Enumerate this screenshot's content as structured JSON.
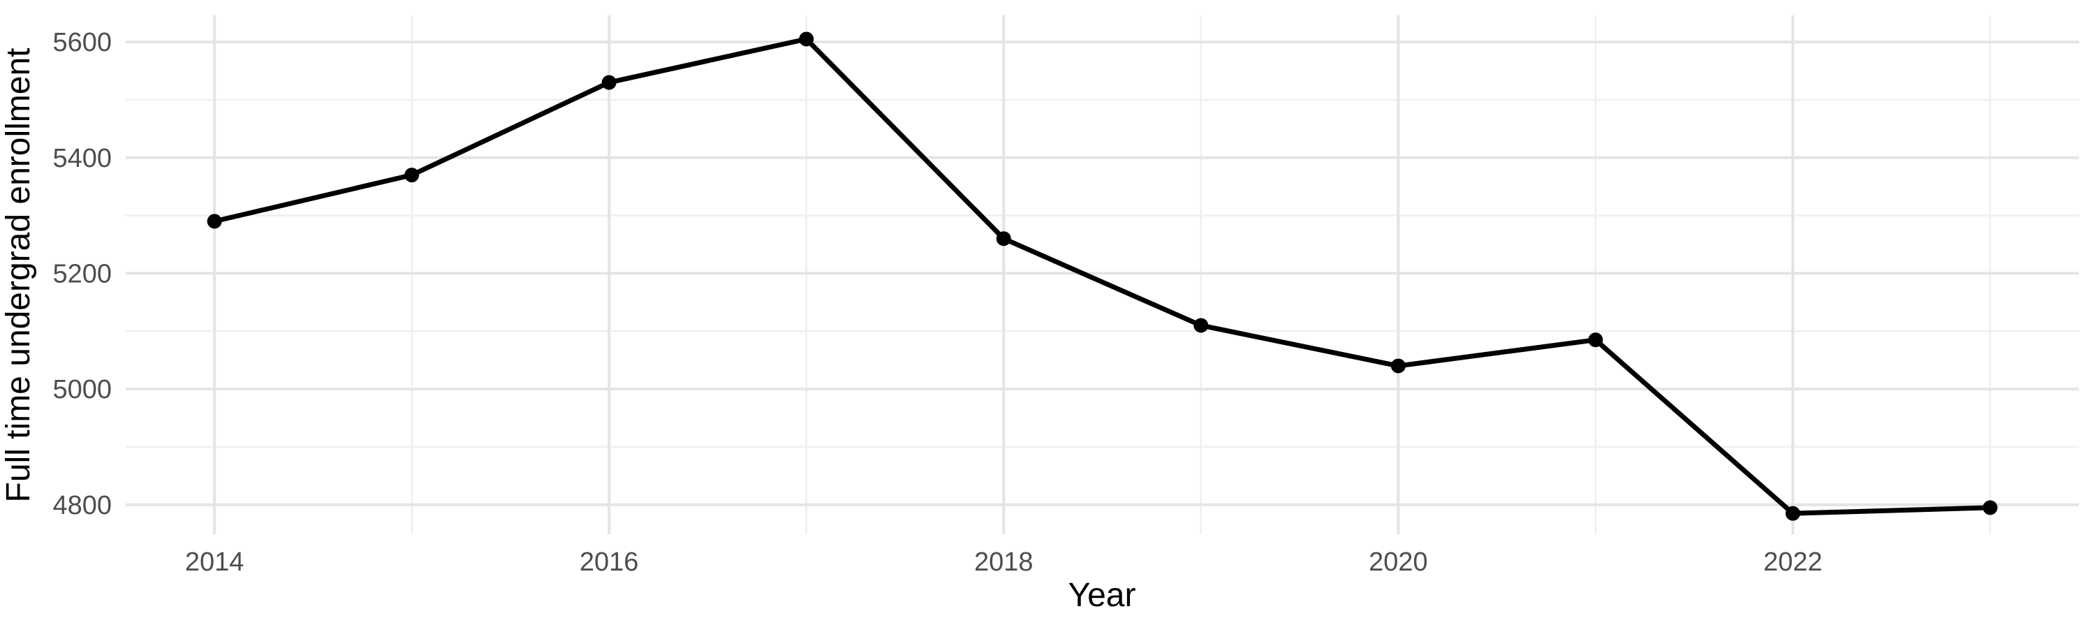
{
  "chart_data": {
    "type": "line",
    "title": "",
    "xlabel": "Year",
    "ylabel": "Full time undergrad enrollment",
    "series": [
      {
        "name": "Full time undergrad enrollment",
        "x": [
          2014,
          2015,
          2016,
          2017,
          2018,
          2019,
          2020,
          2021,
          2022,
          2023
        ],
        "values": [
          5290,
          5370,
          5530,
          5605,
          5260,
          5110,
          5040,
          5085,
          4785,
          4795
        ]
      }
    ],
    "xlim": [
      2013.55,
      2023.45
    ],
    "ylim": [
      4749,
      5646
    ],
    "x_major_ticks": [
      2014,
      2016,
      2018,
      2020,
      2022
    ],
    "x_major_tick_labels": [
      "2014",
      "2016",
      "2018",
      "2020",
      "2022"
    ],
    "x_minor_ticks": [
      2015,
      2017,
      2019,
      2021,
      2023
    ],
    "y_major_ticks": [
      4800,
      5000,
      5200,
      5400,
      5600
    ],
    "y_major_tick_labels": [
      "4800",
      "5000",
      "5200",
      "5400",
      "5600"
    ],
    "y_minor_ticks": [
      4900,
      5100,
      5300,
      5500
    ],
    "grid": true,
    "legend_position": "none",
    "colors": {
      "line": "#000000",
      "point": "#000000",
      "grid_major": "#e4e4e4",
      "grid_minor": "#efefef",
      "tick_text": "#4d4d4d",
      "axis_title_text": "#000000",
      "background": "#ffffff"
    }
  }
}
